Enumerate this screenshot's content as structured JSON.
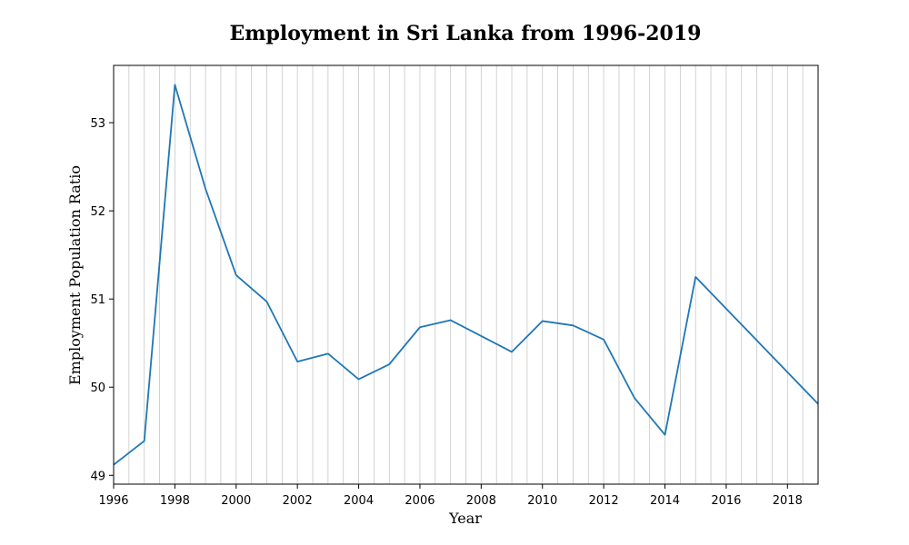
{
  "chart_data": {
    "type": "line",
    "title": "Employment in Sri Lanka from 1996-2019",
    "xlabel": "Year",
    "ylabel": "Employment Population Ratio",
    "xlim": [
      1996,
      2019
    ],
    "ylim": [
      48.9,
      53.65
    ],
    "x_ticks": [
      1996,
      1998,
      2000,
      2002,
      2004,
      2006,
      2008,
      2010,
      2012,
      2014,
      2016,
      2018
    ],
    "y_ticks": [
      49,
      50,
      51,
      52,
      53
    ],
    "grid": "vertical lines at each 0.5 year",
    "series": [
      {
        "color": "#1f77b4",
        "x": [
          1996,
          1997,
          1998,
          1999,
          2000,
          2001,
          2002,
          2003,
          2004,
          2005,
          2006,
          2007,
          2008,
          2009,
          2010,
          2011,
          2012,
          2013,
          2014,
          2015,
          2016,
          2017,
          2018,
          2019
        ],
        "values": [
          49.12,
          49.39,
          53.43,
          52.25,
          51.27,
          50.97,
          50.29,
          50.38,
          50.09,
          50.26,
          50.68,
          50.76,
          50.58,
          50.4,
          50.75,
          50.7,
          50.54,
          49.88,
          49.46,
          51.25,
          50.89,
          50.53,
          50.17,
          49.81
        ]
      }
    ]
  }
}
